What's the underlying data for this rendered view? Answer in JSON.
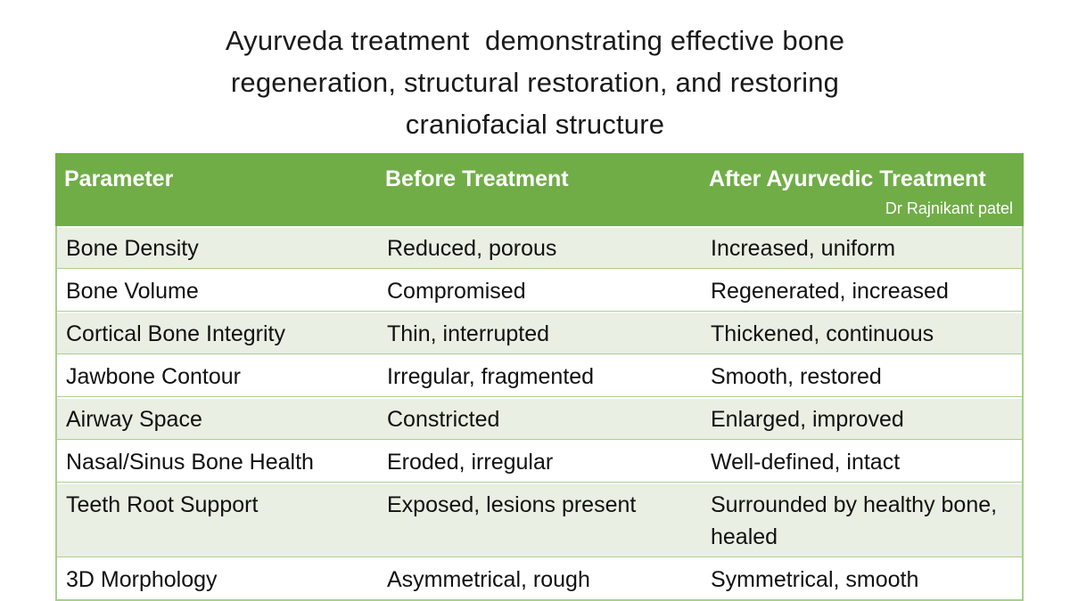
{
  "title": {
    "line1": "Ayurveda treatment  demonstrating effective bone",
    "line2": "regeneration, structural restoration, and restoring",
    "line3": "craniofacial structure"
  },
  "colors": {
    "header_green": "#70AD47",
    "row_band": "#E9EFE3",
    "row_plain": "#FFFFFF",
    "border_green": "#A9D08E",
    "header_text": "#FFFFFF",
    "body_text": "#111111"
  },
  "table": {
    "columns": [
      "Parameter",
      "Before Treatment",
      "After Ayurvedic Treatment"
    ],
    "attribution": "Dr Rajnikant patel",
    "rows": [
      {
        "parameter": "Bone Density",
        "before": "Reduced, porous",
        "after": "Increased, uniform"
      },
      {
        "parameter": "Bone Volume",
        "before": "Compromised",
        "after": "Regenerated, increased"
      },
      {
        "parameter": "Cortical Bone Integrity",
        "before": "Thin, interrupted",
        "after": "Thickened, continuous"
      },
      {
        "parameter": "Jawbone Contour",
        "before": "Irregular, fragmented",
        "after": "Smooth, restored"
      },
      {
        "parameter": "Airway Space",
        "before": "Constricted",
        "after": "Enlarged, improved"
      },
      {
        "parameter": "Nasal/Sinus Bone Health",
        "before": "Eroded, irregular",
        "after": "Well-defined, intact"
      },
      {
        "parameter": "Teeth Root Support",
        "before": "Exposed, lesions present",
        "after": "Surrounded by healthy bone, healed"
      },
      {
        "parameter": "3D Morphology",
        "before": "Asymmetrical, rough",
        "after": "Symmetrical, smooth"
      }
    ]
  }
}
